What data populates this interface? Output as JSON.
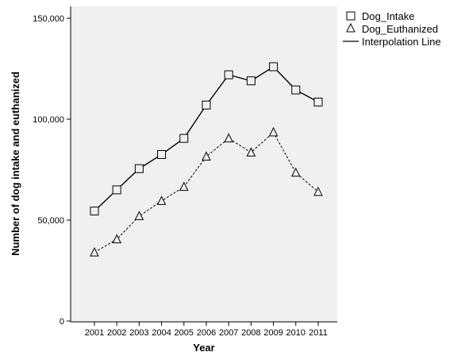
{
  "chart_data": {
    "type": "line",
    "title": "",
    "xlabel": "Year",
    "ylabel": "Number of dog intake and euthanized",
    "x": [
      "2001",
      "2002",
      "2003",
      "2004",
      "2005",
      "2006",
      "2007",
      "2008",
      "2009",
      "2010",
      "2011"
    ],
    "ylim": [
      0,
      160000
    ],
    "yticks": [
      0,
      50000,
      100000,
      150000
    ],
    "ytick_labels": [
      "0",
      "50,000",
      "100,000",
      "150,000"
    ],
    "grid": false,
    "legend_position": "top-right, outside plot",
    "plot_background": "#f0f0f0",
    "series": [
      {
        "name": "Dog_Intake",
        "marker": "square",
        "line_style": "solid",
        "values": [
          54500,
          65000,
          75500,
          82500,
          90500,
          107000,
          122000,
          119000,
          126000,
          114500,
          108500
        ]
      },
      {
        "name": "Dog_Euthanized",
        "marker": "triangle",
        "line_style": "dashed",
        "values": [
          34000,
          40500,
          52000,
          59500,
          66500,
          81500,
          90500,
          83500,
          93500,
          73500,
          64000
        ]
      }
    ],
    "legend": [
      {
        "label": "Dog_Intake",
        "symbol": "square"
      },
      {
        "label": "Dog_Euthanized",
        "symbol": "triangle"
      },
      {
        "label": "Interpolation Line",
        "symbol": "line"
      }
    ]
  }
}
